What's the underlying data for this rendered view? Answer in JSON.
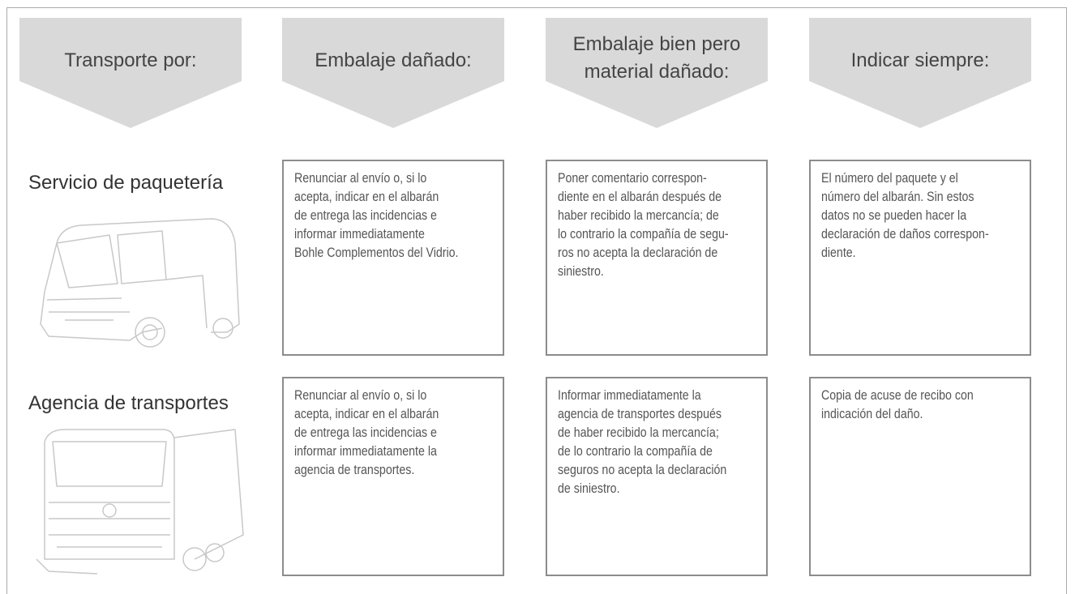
{
  "header": {
    "columns": [
      [
        "Transporte por:"
      ],
      [
        "Embalaje dañado:"
      ],
      [
        "Embalaje bien pero",
        "material dañado:"
      ],
      [
        "Indicar siempre:"
      ]
    ]
  },
  "rows": [
    {
      "label": "Servicio de paquetería",
      "cells": [
        [
          "Renunciar al envío o, si lo",
          "acepta, indicar en el albarán",
          "de entrega las incidencias e",
          "informar immediatamente",
          "Bohle Complementos del Vidrio."
        ],
        [
          "Poner comentario correspon-",
          "diente en el albarán después de",
          "haber recibido la mercancía; de",
          "lo contrario la compañía de segu-",
          "ros  no acepta la declaración de",
          "siniestro."
        ],
        [
          "El número del paquete y el",
          "número del albarán. Sin estos",
          "datos no se pueden hacer la",
          "declaración de daños correspon-",
          "diente."
        ]
      ]
    },
    {
      "label": "Agencia de transportes",
      "cells": [
        [
          "Renunciar al envío o, si lo",
          "acepta, indicar en el albarán",
          "de entrega las incidencias e",
          "informar immediatamente la",
          "agencia de transportes."
        ],
        [
          "Informar immediatamente la",
          "agencia de transportes después",
          "de haber recibido la mercancía;",
          "de lo contrario la compañía de",
          "seguros no acepta la declaración",
          "de siniestro."
        ],
        [
          "Copia de acuse de recibo con",
          "indicación del daño."
        ]
      ]
    }
  ]
}
